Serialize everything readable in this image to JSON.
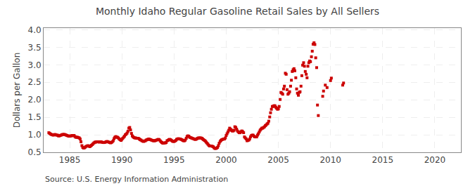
{
  "chart_data": {
    "type": "scatter",
    "title": "Monthly Idaho Regular Gasoline Retail Sales by All Sellers",
    "ylabel": "Dollars per Gallon",
    "annotations": [
      "Source: U.S. Energy Information Administration"
    ],
    "color": "#cc0000",
    "marker": "square",
    "grid": true,
    "xlim": [
      1982.5,
      2022.5
    ],
    "ylim": [
      0.5,
      4.05
    ],
    "xticks": [
      1985,
      1990,
      1995,
      2000,
      2005,
      2010,
      2015,
      2020
    ],
    "yticks": [
      0.5,
      {
        "value": 1.0,
        "label": "1.0"
      },
      1.5,
      {
        "value": 2.0,
        "label": "2.0"
      },
      2.5,
      {
        "value": 3.0,
        "label": "3.0"
      },
      3.5,
      {
        "value": 4.0,
        "label": "4.0"
      }
    ],
    "x": [
      1983.0,
      1983.08,
      1983.17,
      1983.25,
      1983.33,
      1983.42,
      1983.5,
      1983.58,
      1983.67,
      1983.75,
      1983.83,
      1983.92,
      1984.0,
      1984.08,
      1984.17,
      1984.25,
      1984.33,
      1984.42,
      1984.5,
      1984.58,
      1984.67,
      1984.75,
      1984.83,
      1984.92,
      1985.0,
      1985.08,
      1985.17,
      1985.25,
      1985.33,
      1985.42,
      1985.5,
      1985.58,
      1985.67,
      1985.75,
      1985.83,
      1985.92,
      1986.0,
      1986.08,
      1986.17,
      1986.25,
      1986.33,
      1986.42,
      1986.5,
      1986.58,
      1986.67,
      1986.75,
      1986.83,
      1986.92,
      1987.0,
      1987.08,
      1987.17,
      1987.25,
      1987.33,
      1987.42,
      1987.5,
      1987.58,
      1987.67,
      1987.75,
      1987.83,
      1987.92,
      1988.0,
      1988.08,
      1988.17,
      1988.25,
      1988.33,
      1988.42,
      1988.5,
      1988.58,
      1988.67,
      1988.75,
      1988.83,
      1988.92,
      1989.0,
      1989.08,
      1989.17,
      1989.25,
      1989.33,
      1989.42,
      1989.5,
      1989.58,
      1989.67,
      1989.75,
      1989.83,
      1989.92,
      1990.0,
      1990.08,
      1990.17,
      1990.25,
      1990.33,
      1990.42,
      1990.5,
      1990.58,
      1990.67,
      1990.75,
      1990.83,
      1990.92,
      1991.0,
      1991.08,
      1991.17,
      1991.25,
      1991.33,
      1991.42,
      1991.5,
      1991.58,
      1991.67,
      1991.75,
      1991.83,
      1991.92,
      1992.0,
      1992.08,
      1992.17,
      1992.25,
      1992.33,
      1992.42,
      1992.5,
      1992.58,
      1992.67,
      1992.75,
      1992.83,
      1992.92,
      1993.0,
      1993.08,
      1993.17,
      1993.25,
      1993.33,
      1993.42,
      1993.5,
      1993.58,
      1993.67,
      1993.75,
      1993.83,
      1993.92,
      1994.0,
      1994.08,
      1994.17,
      1994.25,
      1994.33,
      1994.42,
      1994.5,
      1994.58,
      1994.67,
      1994.75,
      1994.83,
      1994.92,
      1995.0,
      1995.08,
      1995.17,
      1995.25,
      1995.33,
      1995.42,
      1995.5,
      1995.58,
      1995.67,
      1995.75,
      1995.83,
      1995.92,
      1996.0,
      1996.08,
      1996.17,
      1996.25,
      1996.33,
      1996.42,
      1996.5,
      1996.58,
      1996.67,
      1996.75,
      1996.83,
      1996.92,
      1997.0,
      1997.08,
      1997.17,
      1997.25,
      1997.33,
      1997.42,
      1997.5,
      1997.58,
      1997.67,
      1997.75,
      1997.83,
      1997.92,
      1998.0,
      1998.08,
      1998.17,
      1998.25,
      1998.33,
      1998.42,
      1998.5,
      1998.58,
      1998.67,
      1998.75,
      1998.83,
      1998.92,
      1999.0,
      1999.08,
      1999.17,
      1999.25,
      1999.33,
      1999.42,
      1999.5,
      1999.58,
      1999.67,
      1999.75,
      1999.83,
      1999.92,
      2000.0,
      2000.08,
      2000.17,
      2000.25,
      2000.33,
      2000.42,
      2000.5,
      2000.58,
      2000.67,
      2000.75,
      2000.83,
      2000.92,
      2001.0,
      2001.08,
      2001.17,
      2001.25,
      2001.33,
      2001.42,
      2001.5,
      2001.58,
      2001.67,
      2001.75,
      2001.83,
      2001.92,
      2002.0,
      2002.08,
      2002.17,
      2002.25,
      2002.33,
      2002.42,
      2002.5,
      2002.58,
      2002.67,
      2002.75,
      2002.83,
      2002.92,
      2003.0,
      2003.08,
      2003.17,
      2003.25,
      2003.33,
      2003.42,
      2003.5,
      2003.58,
      2003.67,
      2003.75,
      2003.83,
      2003.92,
      2004.0,
      2004.08,
      2004.17,
      2004.25,
      2004.33,
      2004.42,
      2004.5,
      2004.58,
      2004.67,
      2004.75,
      2004.83,
      2004.92,
      2005.0,
      2005.08,
      2005.17,
      2005.25,
      2005.33,
      2005.42,
      2005.5,
      2005.58,
      2005.67,
      2005.75,
      2005.83,
      2005.92,
      2006.0,
      2006.08,
      2006.17,
      2006.25,
      2006.33,
      2006.42,
      2006.5,
      2006.58,
      2006.67,
      2006.75,
      2006.83,
      2006.92,
      2007.0,
      2007.08,
      2007.17,
      2007.25,
      2007.33,
      2007.42,
      2007.5,
      2007.58,
      2007.67,
      2007.75,
      2007.83,
      2007.92,
      2008.0,
      2008.08,
      2008.17,
      2008.25,
      2008.33,
      2008.42,
      2008.5,
      2008.58,
      2008.67,
      2008.75,
      2008.83,
      2009.25,
      2009.33,
      2009.5,
      2009.67,
      2010.0,
      2010.08,
      2011.17,
      2011.25
    ],
    "values": [
      1.06,
      1.04,
      1.02,
      1.01,
      1.0,
      0.99,
      1.0,
      1.01,
      1.0,
      0.99,
      0.99,
      0.97,
      0.97,
      0.98,
      0.99,
      1.0,
      1.01,
      1.01,
      1.01,
      1.0,
      0.99,
      0.98,
      0.97,
      0.96,
      0.96,
      0.97,
      0.97,
      0.98,
      0.98,
      0.98,
      0.95,
      0.93,
      0.93,
      0.93,
      0.92,
      0.91,
      0.88,
      0.8,
      0.69,
      0.64,
      0.62,
      0.63,
      0.65,
      0.67,
      0.68,
      0.69,
      0.68,
      0.66,
      0.68,
      0.7,
      0.72,
      0.75,
      0.77,
      0.79,
      0.79,
      0.8,
      0.8,
      0.8,
      0.79,
      0.8,
      0.8,
      0.79,
      0.78,
      0.78,
      0.78,
      0.79,
      0.8,
      0.81,
      0.8,
      0.79,
      0.78,
      0.77,
      0.78,
      0.8,
      0.83,
      0.89,
      0.93,
      0.95,
      0.93,
      0.93,
      0.91,
      0.88,
      0.86,
      0.84,
      0.87,
      0.9,
      0.93,
      0.96,
      1.0,
      1.02,
      1.05,
      1.1,
      1.19,
      1.21,
      1.14,
      1.04,
      0.97,
      0.94,
      0.92,
      0.91,
      0.91,
      0.9,
      0.9,
      0.9,
      0.88,
      0.86,
      0.85,
      0.83,
      0.82,
      0.81,
      0.82,
      0.83,
      0.85,
      0.86,
      0.87,
      0.88,
      0.87,
      0.86,
      0.85,
      0.84,
      0.83,
      0.83,
      0.83,
      0.84,
      0.85,
      0.86,
      0.87,
      0.86,
      0.83,
      0.8,
      0.78,
      0.76,
      0.76,
      0.77,
      0.77,
      0.78,
      0.83,
      0.84,
      0.86,
      0.87,
      0.86,
      0.84,
      0.82,
      0.81,
      0.81,
      0.82,
      0.84,
      0.87,
      0.88,
      0.89,
      0.88,
      0.88,
      0.87,
      0.86,
      0.84,
      0.83,
      0.83,
      0.85,
      0.9,
      0.95,
      0.97,
      0.96,
      0.93,
      0.92,
      0.91,
      0.9,
      0.89,
      0.88,
      0.87,
      0.87,
      0.88,
      0.9,
      0.91,
      0.91,
      0.91,
      0.91,
      0.9,
      0.88,
      0.86,
      0.84,
      0.82,
      0.79,
      0.76,
      0.73,
      0.7,
      0.68,
      0.68,
      0.68,
      0.67,
      0.66,
      0.63,
      0.61,
      0.61,
      0.62,
      0.64,
      0.69,
      0.76,
      0.81,
      0.84,
      0.86,
      0.87,
      0.88,
      0.88,
      0.91,
      0.98,
      1.03,
      1.08,
      1.13,
      1.19,
      1.16,
      1.13,
      1.11,
      1.11,
      1.13,
      1.23,
      1.21,
      1.16,
      1.11,
      1.08,
      1.06,
      1.06,
      1.09,
      1.11,
      1.09,
      1.06,
      0.94,
      0.91,
      0.88,
      0.83,
      0.84,
      0.85,
      0.88,
      0.94,
      0.98,
      0.99,
      0.99,
      0.96,
      0.94,
      0.94,
      0.94,
      0.99,
      1.03,
      1.08,
      1.13,
      1.16,
      1.19,
      1.19,
      1.21,
      1.23,
      1.26,
      1.28,
      1.31,
      1.33,
      1.39,
      1.51,
      1.63,
      1.73,
      1.81,
      1.81,
      1.83,
      1.83,
      1.79,
      1.76,
      1.73,
      1.74,
      1.81,
      2.01,
      2.21,
      2.19,
      2.16,
      2.31,
      2.39,
      2.76,
      2.73,
      2.29,
      2.16,
      2.19,
      2.23,
      2.39,
      2.56,
      2.81,
      2.86,
      2.89,
      2.83,
      2.63,
      2.31,
      2.19,
      2.13,
      2.21,
      2.23,
      2.39,
      2.69,
      2.99,
      3.06,
      2.96,
      2.81,
      2.73,
      2.63,
      2.96,
      3.06,
      3.11,
      3.09,
      3.23,
      3.39,
      3.59,
      3.63,
      3.58,
      3.2,
      2.92,
      1.85,
      1.55,
      2.1,
      2.25,
      2.42,
      2.35,
      2.55,
      2.62,
      2.42,
      2.48
    ]
  }
}
